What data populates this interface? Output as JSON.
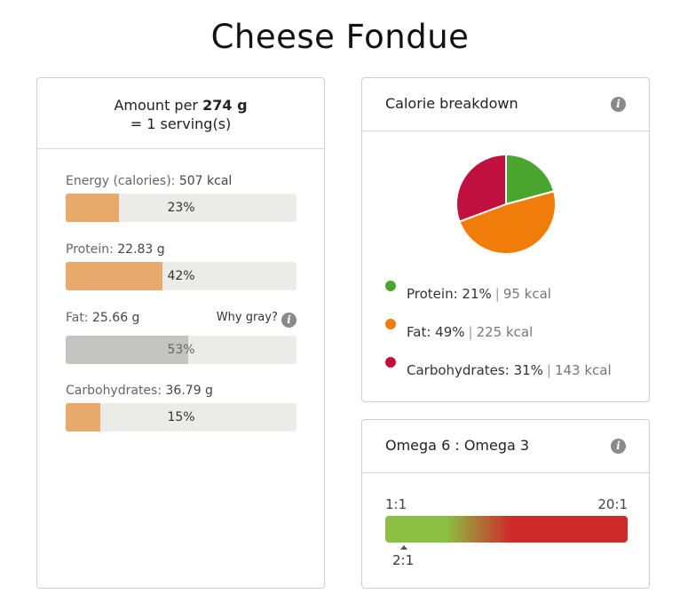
{
  "title": "Cheese Fondue",
  "amount": {
    "prefix": "Amount per",
    "weight": "274 g",
    "servings": "= 1 serving(s)"
  },
  "nutrients": [
    {
      "label": "Energy (calories):",
      "value": "507 kcal",
      "percent_label": "23%",
      "percent": 23
    },
    {
      "label": "Protein:",
      "value": "22.83 g",
      "percent_label": "42%",
      "percent": 42
    },
    {
      "label": "Fat:",
      "value": "25.66 g",
      "percent_label": "53%",
      "percent": 53
    },
    {
      "label": "Carbohydrates:",
      "value": "36.79 g",
      "percent_label": "15%",
      "percent": 15
    }
  ],
  "why_gray": "Why gray?",
  "calorie_breakdown": {
    "title": "Calorie breakdown",
    "items": [
      {
        "name": "Protein:",
        "percent_label": "21%",
        "kcal": "95 kcal",
        "percent": 21,
        "color": "#4aa52e"
      },
      {
        "name": "Fat:",
        "percent_label": "49%",
        "kcal": "225 kcal",
        "percent": 49,
        "color": "#f07d0a"
      },
      {
        "name": "Carbohydrates:",
        "percent_label": "31%",
        "kcal": "143 kcal",
        "percent": 31,
        "color": "#c0103f"
      }
    ]
  },
  "omega": {
    "title": "Omega 6 : Omega 3",
    "scale_min": "1:1",
    "scale_max": "20:1",
    "value": "2:1"
  },
  "colors": {
    "bar_fill": "#e8a96d",
    "bar_fill_gray": "#c4c4c0",
    "bar_track": "#ebebe7"
  },
  "icons": {
    "info": "info-icon"
  }
}
